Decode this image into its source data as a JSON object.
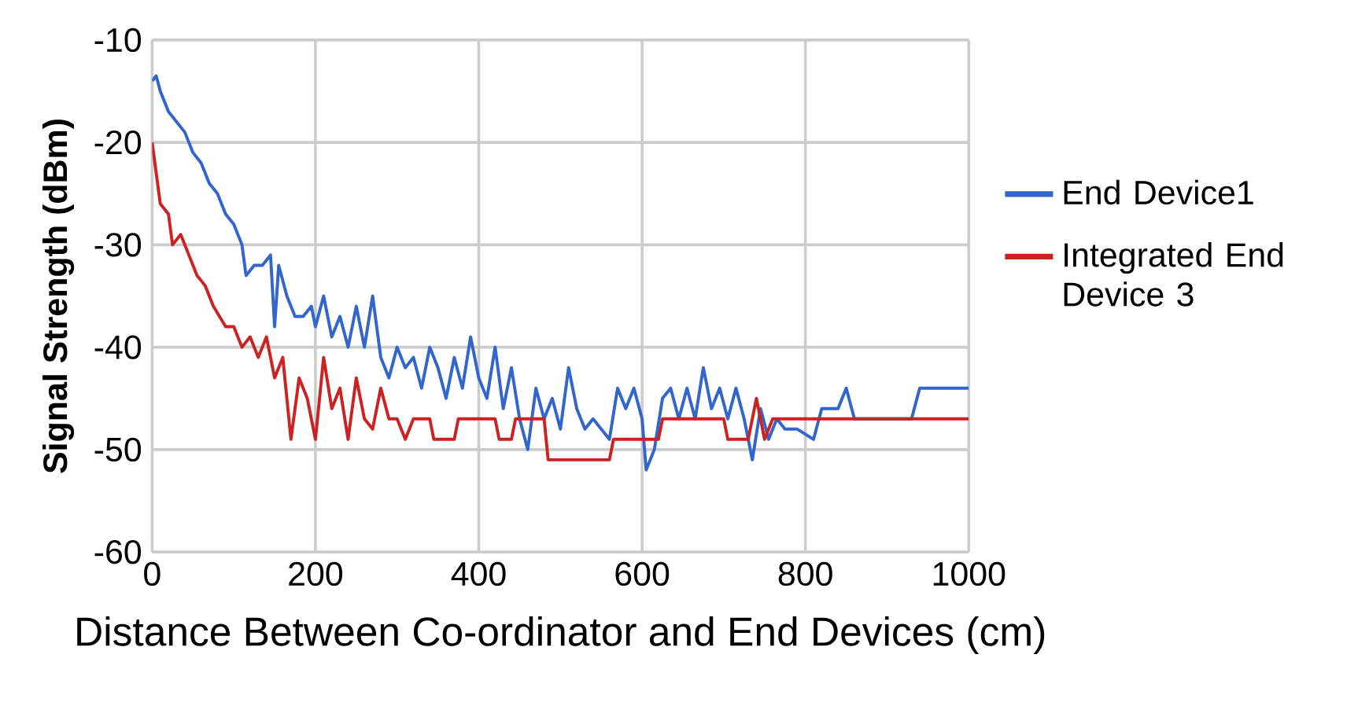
{
  "chart_data": {
    "type": "line",
    "xlabel": "Distance Between Co-ordinator and End Devices (cm)",
    "ylabel": "Signal Strength (dBm)",
    "xlim": [
      0,
      1000
    ],
    "ylim": [
      -60,
      -10
    ],
    "xticks": [
      0,
      200,
      400,
      600,
      800,
      1000
    ],
    "yticks": [
      -60,
      -50,
      -40,
      -30,
      -20,
      -10
    ],
    "grid": true,
    "legend": "right",
    "marker": "none",
    "series": [
      {
        "name": "End Device1",
        "color": "#3366cc",
        "x": [
          0,
          5,
          10,
          20,
          30,
          40,
          50,
          60,
          70,
          80,
          90,
          100,
          110,
          115,
          125,
          135,
          145,
          150,
          155,
          165,
          175,
          185,
          195,
          200,
          210,
          220,
          230,
          240,
          250,
          260,
          270,
          280,
          290,
          300,
          310,
          320,
          330,
          340,
          350,
          360,
          370,
          380,
          390,
          400,
          410,
          420,
          430,
          440,
          450,
          460,
          470,
          480,
          490,
          500,
          510,
          520,
          530,
          540,
          560,
          570,
          580,
          590,
          600,
          605,
          615,
          625,
          635,
          645,
          655,
          665,
          675,
          685,
          695,
          705,
          715,
          725,
          735,
          745,
          755,
          765,
          775,
          790,
          810,
          820,
          840,
          850,
          860,
          880,
          930,
          940,
          1000
        ],
        "values": [
          -14,
          -13.5,
          -15,
          -17,
          -18,
          -19,
          -21,
          -22,
          -24,
          -25,
          -27,
          -28,
          -30,
          -33,
          -32,
          -32,
          -31,
          -38,
          -32,
          -35,
          -37,
          -37,
          -36,
          -38,
          -35,
          -39,
          -37,
          -40,
          -36,
          -40,
          -35,
          -41,
          -43,
          -40,
          -42,
          -41,
          -44,
          -40,
          -42,
          -45,
          -41,
          -44,
          -39,
          -43,
          -45,
          -40,
          -46,
          -42,
          -47,
          -50,
          -44,
          -47,
          -45,
          -48,
          -42,
          -46,
          -48,
          -47,
          -49,
          -44,
          -46,
          -44,
          -47,
          -52,
          -50,
          -45,
          -44,
          -47,
          -44,
          -47,
          -42,
          -46,
          -44,
          -47,
          -44,
          -47,
          -51,
          -46,
          -49,
          -47,
          -48,
          -48,
          -49,
          -46,
          -46,
          -44,
          -47,
          null,
          -47,
          -44,
          -44
        ]
      },
      {
        "name": "Integrated End Device 3",
        "color": "#cc2222",
        "x": [
          0,
          5,
          10,
          20,
          25,
          35,
          45,
          55,
          65,
          75,
          90,
          100,
          110,
          120,
          130,
          140,
          150,
          160,
          170,
          180,
          190,
          200,
          210,
          220,
          230,
          240,
          250,
          260,
          270,
          280,
          290,
          300,
          310,
          320,
          340,
          345,
          370,
          375,
          420,
          425,
          440,
          445,
          480,
          485,
          560,
          565,
          620,
          625,
          700,
          705,
          730,
          740,
          750,
          760,
          1000
        ],
        "values": [
          -20,
          -23,
          -26,
          -27,
          -30,
          -29,
          -31,
          -33,
          -34,
          -36,
          -38,
          -38,
          -40,
          -39,
          -41,
          -39,
          -43,
          -41,
          -49,
          -43,
          -45,
          -49,
          -41,
          -46,
          -44,
          -49,
          -43,
          -47,
          -48,
          -44,
          -47,
          -47,
          -49,
          -47,
          -47,
          -49,
          -49,
          -47,
          -47,
          -49,
          -49,
          -47,
          -47,
          -51,
          -51,
          -49,
          -49,
          -47,
          -47,
          -49,
          -49,
          -45,
          -49,
          -47,
          -47
        ]
      }
    ]
  }
}
